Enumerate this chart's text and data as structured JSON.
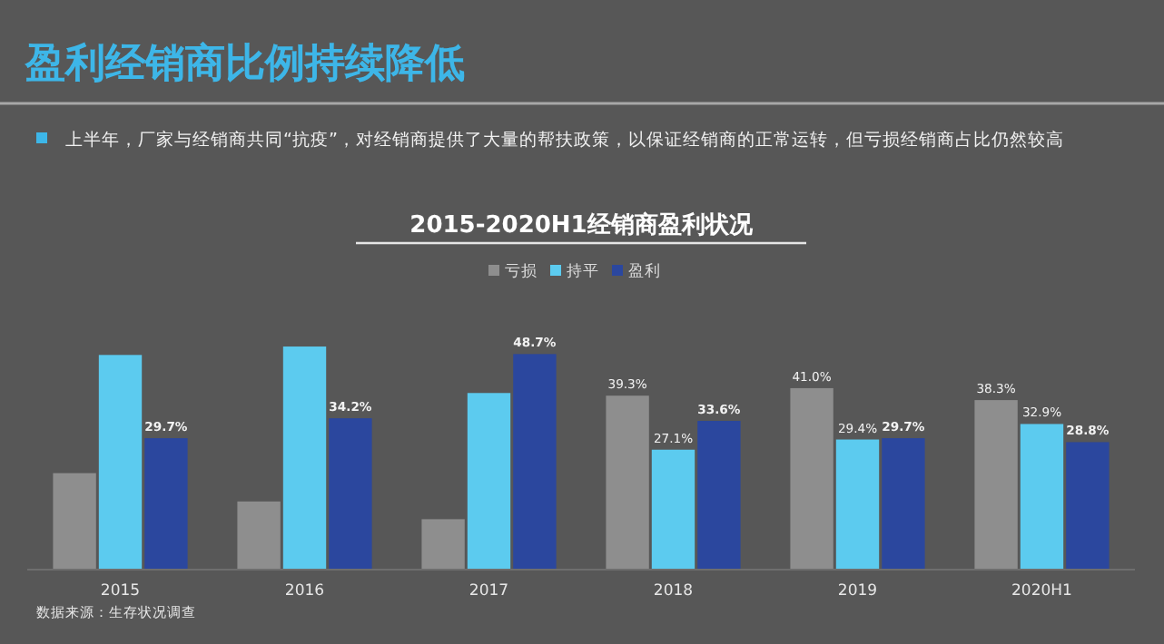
{
  "chart_data": {
    "type": "bar",
    "title": "盈利经销商比例持续降低",
    "subtitle": "2015-2020H1经销商盈利状况",
    "annotations": [
      "上半年，厂家与经销商共同“抗疫”，对经销商提供了大量的帮扶政策，以保证经销商的正常运转，但亏损经销商占比仍然较高",
      "数据来源：生存状况调查"
    ],
    "categories": [
      "2015",
      "2016",
      "2017",
      "2018",
      "2019",
      "2020H1"
    ],
    "series": [
      {
        "name": "亏损",
        "color": "#8e8e8e",
        "values": [
          21.8,
          15.4,
          11.4,
          39.3,
          41.0,
          38.3
        ],
        "value_labels": [
          null,
          null,
          null,
          "39.3%",
          "41.0%",
          "38.3%"
        ]
      },
      {
        "name": "持平",
        "color": "#5ccbef",
        "values": [
          48.5,
          50.4,
          39.9,
          27.1,
          29.4,
          32.9
        ],
        "value_labels": [
          null,
          null,
          null,
          "27.1%",
          "29.4%",
          "32.9%"
        ]
      },
      {
        "name": "盈利",
        "color": "#2b479e",
        "values": [
          29.7,
          34.2,
          48.7,
          33.6,
          29.7,
          28.8
        ],
        "value_labels": [
          "29.7%",
          "34.2%",
          "48.7%",
          "33.6%",
          "29.7%",
          "28.8%"
        ]
      }
    ],
    "legend": "top",
    "grid": false
  }
}
